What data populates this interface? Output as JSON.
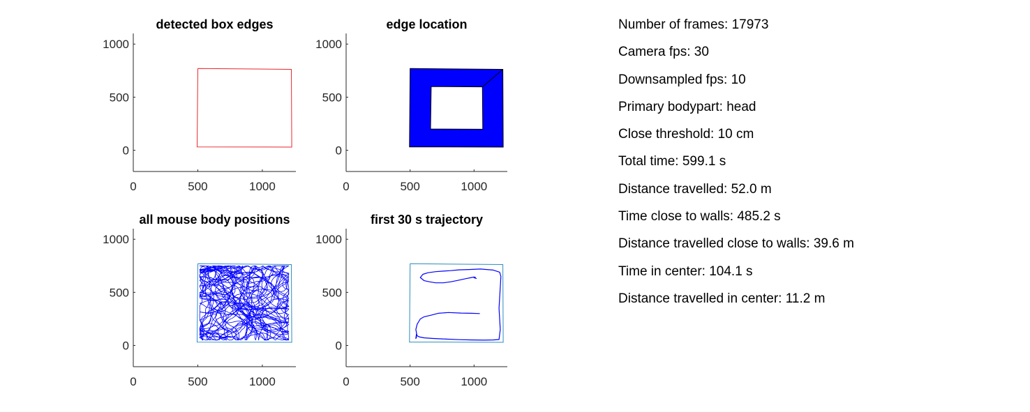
{
  "colors": {
    "edges": "#e8262b",
    "fill": "#0000ff",
    "trajectory": "#0000ff",
    "box_outline": "#2b8cbe",
    "frame": "#262626"
  },
  "chart_data": [
    {
      "type": "line",
      "title": "detected box edges",
      "xlim": [
        0,
        1260
      ],
      "ylim": [
        -200,
        1100
      ],
      "xticks": [
        0,
        500,
        1000
      ],
      "yticks": [
        0,
        500,
        1000
      ],
      "grid": false,
      "series": [
        {
          "style": "edge",
          "x": [
            500,
            1225,
            1228,
            495,
            500
          ],
          "y": [
            770,
            762,
            30,
            32,
            770
          ]
        }
      ]
    },
    {
      "type": "area",
      "title": "edge location",
      "xlim": [
        0,
        1260
      ],
      "ylim": [
        -200,
        1100
      ],
      "xticks": [
        0,
        500,
        1000
      ],
      "yticks": [
        0,
        500,
        1000
      ],
      "grid": false,
      "outer": {
        "x": [
          500,
          1225,
          1228,
          495
        ],
        "y": [
          770,
          762,
          30,
          32
        ]
      },
      "inner": {
        "x": [
          665,
          1065,
          1068,
          660
        ],
        "y": [
          600,
          597,
          198,
          200
        ]
      }
    },
    {
      "type": "line",
      "title": "all mouse body positions",
      "xlim": [
        0,
        1260
      ],
      "ylim": [
        -200,
        1100
      ],
      "xticks": [
        0,
        500,
        1000
      ],
      "yticks": [
        0,
        500,
        1000
      ],
      "grid": false,
      "series": [
        {
          "style": "box",
          "x": [
            500,
            1225,
            1228,
            495,
            500
          ],
          "y": [
            770,
            762,
            30,
            32,
            770
          ]
        },
        {
          "style": "dense-trajectory",
          "x_range": [
            515,
            1205
          ],
          "y_range": [
            50,
            750
          ]
        }
      ]
    },
    {
      "type": "line",
      "title": "first 30 s trajectory",
      "xlim": [
        0,
        1260
      ],
      "ylim": [
        -200,
        1100
      ],
      "xticks": [
        0,
        500,
        1000
      ],
      "yticks": [
        0,
        500,
        1000
      ],
      "grid": false,
      "series": [
        {
          "style": "box",
          "x": [
            500,
            1225,
            1228,
            495,
            500
          ],
          "y": [
            770,
            762,
            30,
            32,
            770
          ]
        },
        {
          "style": "trajectory",
          "x": [
            1045,
            980,
            900,
            800,
            720,
            665,
            610,
            580,
            555,
            545,
            550,
            552,
            548,
            550,
            545,
            550,
            556,
            575,
            610,
            680,
            780,
            880,
            980,
            1080,
            1150,
            1195,
            1205,
            1200,
            1195,
            1200,
            1205,
            1210,
            1200,
            1150,
            1050,
            960,
            880,
            820,
            760,
            700,
            640,
            600,
            580,
            610,
            650,
            700,
            760,
            820,
            880,
            940,
            980,
            1000,
            1010,
            1000,
            1020
          ],
          "y": [
            300,
            303,
            305,
            310,
            303,
            285,
            270,
            250,
            200,
            150,
            120,
            100,
            85,
            75,
            65,
            110,
            90,
            80,
            72,
            66,
            60,
            55,
            52,
            50,
            52,
            56,
            150,
            250,
            350,
            450,
            550,
            650,
            690,
            710,
            720,
            715,
            712,
            705,
            700,
            695,
            685,
            670,
            640,
            610,
            600,
            590,
            590,
            600,
            615,
            630,
            640,
            645,
            642,
            638,
            630
          ]
        }
      ]
    }
  ],
  "stats": [
    "Number of frames: 17973",
    "Camera fps: 30",
    "Downsampled fps: 10",
    "Primary bodypart: head",
    "Close threshold: 10 cm",
    "Total time: 599.1 s",
    "Distance travelled: 52.0 m",
    "Time close to walls: 485.2 s",
    "Distance travelled close to walls: 39.6 m",
    "Time in center: 104.1 s",
    "Distance travelled in center: 11.2 m"
  ]
}
